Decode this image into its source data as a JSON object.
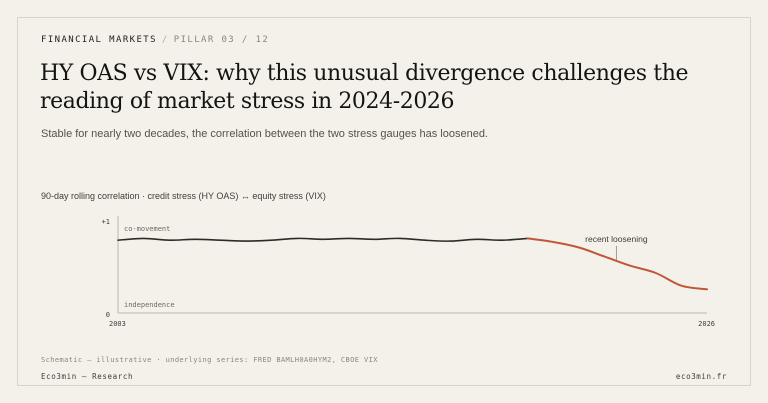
{
  "header": {
    "section": "FINANCIAL MARKETS",
    "separator": "/",
    "pillar": "PILLAR 03 / 12"
  },
  "title": "HY OAS vs VIX: why this unusual divergence challenges the reading of market stress in 2024-2026",
  "subtitle": "Stable for nearly two decades, the correlation between the two stress gauges has loosened.",
  "chart_caption": "90-day rolling correlation · credit stress (HY OAS) ↔ equity stress (VIX)",
  "footnote": "Schematic — illustrative · underlying series: FRED BAMLH0A0HYM2, CBOE VIX",
  "footer": {
    "left": "Eco3min — Research",
    "right": "eco3min.fr"
  },
  "colors": {
    "background": "#f4f1ea",
    "stable_line": "#2b2b28",
    "divergence_line": "#c0573a",
    "axis": "#bdb7ab"
  },
  "chart_data": {
    "type": "line",
    "title": "90-day rolling correlation · credit stress (HY OAS) ↔ equity stress (VIX)",
    "xlabel": "",
    "ylabel": "",
    "x_ticks": [
      "2003",
      "2026"
    ],
    "y_ticks": [
      "0",
      "+1"
    ],
    "xlim": [
      2003,
      2026
    ],
    "ylim": [
      0,
      1
    ],
    "grid": false,
    "region_labels": {
      "top": "co-movement",
      "bottom": "independence"
    },
    "annotation": {
      "text": "recent loosening",
      "x": 2022.5,
      "y": 0.55
    },
    "series": [
      {
        "style": "stable",
        "x": [
          2003,
          2004,
          2005,
          2006,
          2007,
          2008,
          2009,
          2010,
          2011,
          2012,
          2013,
          2014,
          2015,
          2016,
          2017,
          2018,
          2019
        ],
        "values": [
          0.8,
          0.82,
          0.8,
          0.81,
          0.8,
          0.79,
          0.8,
          0.82,
          0.81,
          0.82,
          0.81,
          0.82,
          0.8,
          0.79,
          0.81,
          0.8,
          0.82
        ]
      },
      {
        "style": "divergence",
        "x": [
          2019,
          2020,
          2021,
          2022,
          2023,
          2024,
          2025,
          2026
        ],
        "values": [
          0.82,
          0.78,
          0.72,
          0.62,
          0.52,
          0.44,
          0.3,
          0.26
        ]
      }
    ]
  }
}
